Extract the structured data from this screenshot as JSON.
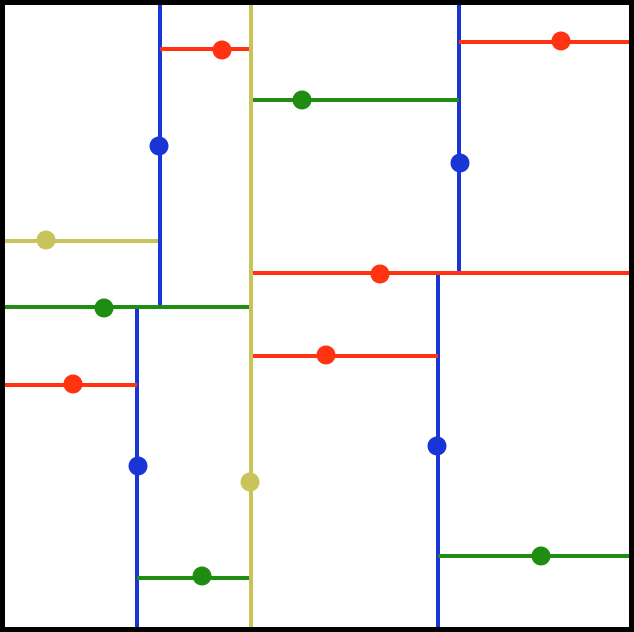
{
  "diagram": {
    "background": "#ffffff",
    "frame_color": "#000000",
    "colors": {
      "yellow": "#c8c35a",
      "blue": "#1a35d6",
      "green": "#1f8c12",
      "red": "#ff3311"
    },
    "segments": [
      {
        "id": "yellow-vertical-main",
        "color": "yellow"
      },
      {
        "id": "yellow-horizontal-left",
        "color": "yellow"
      },
      {
        "id": "blue-vertical-upper-left",
        "color": "blue"
      },
      {
        "id": "blue-vertical-lower-left",
        "color": "blue"
      },
      {
        "id": "blue-vertical-upper-right",
        "color": "blue"
      },
      {
        "id": "blue-vertical-lower-right",
        "color": "blue"
      },
      {
        "id": "red-horizontal-top-left",
        "color": "red"
      },
      {
        "id": "red-horizontal-top-right",
        "color": "red"
      },
      {
        "id": "red-horizontal-middle",
        "color": "red"
      },
      {
        "id": "red-horizontal-center",
        "color": "red"
      },
      {
        "id": "red-horizontal-left",
        "color": "red"
      },
      {
        "id": "green-horizontal-top",
        "color": "green"
      },
      {
        "id": "green-horizontal-left",
        "color": "green"
      },
      {
        "id": "green-horizontal-bottom-left",
        "color": "green"
      },
      {
        "id": "green-horizontal-bottom-right",
        "color": "green"
      }
    ]
  }
}
